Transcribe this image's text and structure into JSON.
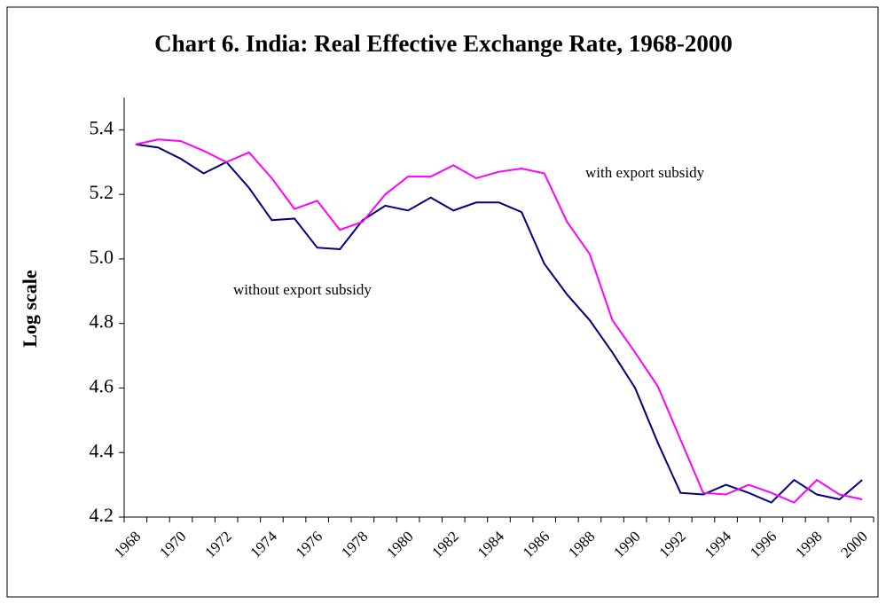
{
  "chart_data": {
    "type": "line",
    "title": "Chart 6. India: Real Effective Exchange Rate, 1968-2000",
    "y_label": "Log scale",
    "categories": [
      "1968",
      null,
      "1970",
      null,
      "1972",
      null,
      "1974",
      null,
      "1976",
      null,
      "1978",
      null,
      "1980",
      null,
      "1982",
      null,
      "1984",
      null,
      "1986",
      null,
      "1988",
      null,
      "1990",
      null,
      "1992",
      null,
      "1994",
      null,
      "1996",
      null,
      "1998",
      null,
      "2000"
    ],
    "series": [
      {
        "name": "without export subsidy",
        "color": "#000080",
        "values": [
          5.355,
          5.345,
          5.31,
          5.265,
          5.3,
          5.22,
          5.12,
          5.125,
          5.035,
          5.03,
          5.12,
          5.165,
          5.15,
          5.19,
          5.15,
          5.175,
          5.175,
          5.145,
          4.985,
          4.89,
          4.81,
          4.71,
          4.6,
          4.43,
          4.275,
          4.27,
          4.3,
          4.275,
          4.245,
          4.315,
          4.27,
          4.255,
          4.315
        ]
      },
      {
        "name": "with export subsidy",
        "color": "#ff00ff",
        "values": [
          5.355,
          5.37,
          5.365,
          5.335,
          5.3,
          5.33,
          5.25,
          5.155,
          5.18,
          5.09,
          5.115,
          5.2,
          5.255,
          5.255,
          5.29,
          5.25,
          5.27,
          5.28,
          5.265,
          5.115,
          5.015,
          4.81,
          4.71,
          4.605,
          4.44,
          4.275,
          4.27,
          4.3,
          4.275,
          4.245,
          4.315,
          4.27,
          4.255
        ]
      }
    ],
    "ylim": [
      4.2,
      5.5
    ],
    "yticks": [
      4.2,
      4.4,
      4.6,
      4.8,
      {
        "value": 5,
        "label": "5.0"
      },
      5.2,
      5.4
    ],
    "grid": false
  }
}
